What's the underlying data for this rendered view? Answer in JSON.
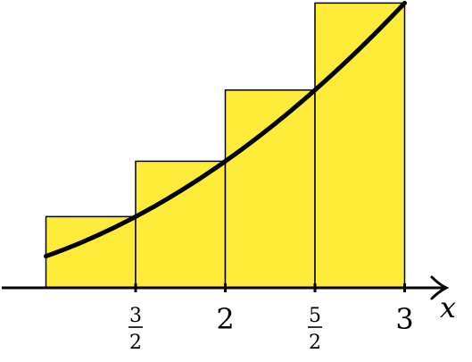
{
  "chart_data": {
    "type": "bar",
    "description_free": true,
    "x_axis": {
      "label": "x",
      "ticks": [
        {
          "value": 1.5,
          "kind": "fraction",
          "numerator": "3",
          "denominator": "2"
        },
        {
          "value": 2,
          "kind": "integer",
          "text": "2"
        },
        {
          "value": 2.5,
          "kind": "fraction",
          "numerator": "5",
          "denominator": "2"
        },
        {
          "value": 3,
          "kind": "integer",
          "text": "3"
        }
      ],
      "range": [
        0.5,
        3.25
      ]
    },
    "y_axis": {
      "range": [
        0,
        9.5
      ]
    },
    "rectangles": [
      {
        "x0": 1.0,
        "x1": 1.5,
        "height": 2.25
      },
      {
        "x0": 1.5,
        "x1": 2.0,
        "height": 4.0
      },
      {
        "x0": 2.0,
        "x1": 2.5,
        "height": 6.25
      },
      {
        "x0": 2.5,
        "x1": 3.0,
        "height": 9.0
      }
    ],
    "curve": {
      "function": "y = x^2",
      "x_start": 1.0,
      "x_end": 3.0
    },
    "colors": {
      "bar_fill": "#FEEB3A",
      "bar_stroke": "#000000",
      "curve": "#000000",
      "axis": "#000000"
    }
  }
}
